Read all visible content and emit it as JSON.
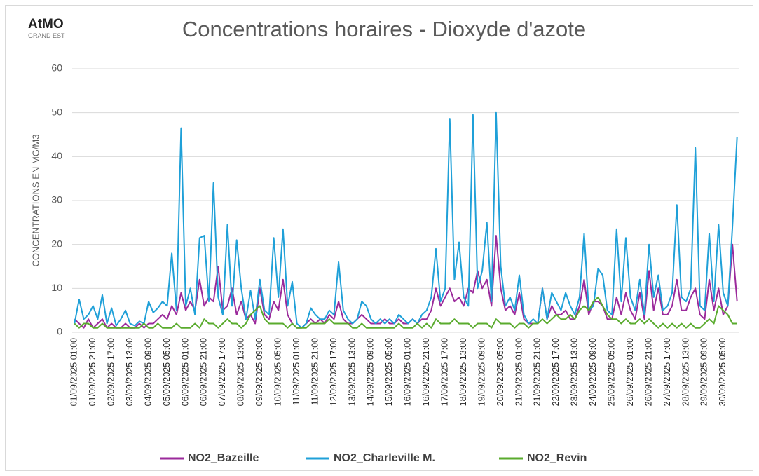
{
  "logo": {
    "name": "AtMO",
    "region": "GRAND EST"
  },
  "chart_data": {
    "type": "line",
    "title": "Concentrations horaires - Dioxyde d'azote",
    "y_label": "CONCENTRATIONS EN MG/M3",
    "ylim": [
      0,
      60
    ],
    "yticks": [
      0,
      10,
      20,
      30,
      40,
      50,
      60
    ],
    "grid": true,
    "legend": "bottom",
    "categories": [
      "01/09/2025 01:00",
      null,
      null,
      null,
      "01/09/2025 21:00",
      null,
      null,
      null,
      "02/09/2025 17:00",
      null,
      null,
      null,
      "03/09/2025 13:00",
      null,
      null,
      null,
      "04/09/2025 09:00",
      null,
      null,
      null,
      "05/09/2025 05:00",
      null,
      null,
      null,
      "06/09/2025 01:00",
      null,
      null,
      null,
      "06/09/2025 21:00",
      null,
      null,
      null,
      "07/09/2025 17:00",
      null,
      null,
      null,
      "08/09/2025 13:00",
      null,
      null,
      null,
      "09/09/2025 09:00",
      null,
      null,
      null,
      "10/09/2025 05:00",
      null,
      null,
      null,
      "11/09/2025 01:00",
      null,
      null,
      null,
      "11/09/2025 21:00",
      null,
      null,
      null,
      "12/09/2025 17:00",
      null,
      null,
      null,
      "13/09/2025 13:00",
      null,
      null,
      null,
      "14/09/2025 09:00",
      null,
      null,
      null,
      "15/09/2025 05:00",
      null,
      null,
      null,
      "16/09/2025 01:00",
      null,
      null,
      null,
      "16/09/2025 21:00",
      null,
      null,
      null,
      "17/09/2025 17:00",
      null,
      null,
      null,
      "18/09/2025 13:00",
      null,
      null,
      null,
      "19/09/2025 09:00",
      null,
      null,
      null,
      "20/09/2025 05:00",
      null,
      null,
      null,
      "21/09/2025 01:00",
      null,
      null,
      null,
      "21/09/2025 21:00",
      null,
      null,
      null,
      "22/09/2025 17:00",
      null,
      null,
      null,
      "23/09/2025 13:00",
      null,
      null,
      null,
      "24/09/2025 09:00",
      null,
      null,
      null,
      "25/09/2025 05:00",
      null,
      null,
      null,
      "26/09/2025 01:00",
      null,
      null,
      null,
      "26/09/2025 21:00",
      null,
      null,
      null,
      "27/09/2025 17:00",
      null,
      null,
      null,
      "28/09/2025 13:00",
      null,
      null,
      null,
      "29/09/2025 09:00",
      null,
      null,
      null,
      "30/09/2025 05:00",
      null,
      null,
      null
    ],
    "series": [
      {
        "name": "NO2_Bazeille",
        "color": "#9b2a9b",
        "values": [
          3,
          2,
          1,
          3,
          1,
          2,
          3,
          1,
          2,
          1,
          1,
          2,
          1,
          1,
          2,
          1,
          2,
          2,
          3,
          4,
          3,
          6,
          4,
          9,
          5,
          7,
          5,
          12,
          6,
          8,
          7,
          15,
          5,
          6,
          10,
          4,
          7,
          3,
          4,
          2,
          10,
          4,
          3,
          7,
          5,
          12,
          4,
          2,
          1,
          1,
          2,
          3,
          2,
          3,
          2,
          4,
          3,
          7,
          3,
          2,
          2,
          3,
          4,
          3,
          2,
          2,
          2,
          3,
          2,
          2,
          3,
          2,
          2,
          3,
          2,
          3,
          3,
          5,
          10,
          6,
          8,
          10,
          7,
          8,
          6,
          10,
          9,
          14,
          10,
          12,
          6,
          22,
          10,
          5,
          6,
          4,
          9,
          3,
          2,
          2,
          2,
          10,
          3,
          6,
          4,
          4,
          5,
          3,
          3,
          6,
          12,
          4,
          7,
          7,
          6,
          3,
          3,
          8,
          4,
          9,
          5,
          3,
          9,
          3,
          14,
          5,
          10,
          4,
          4,
          6,
          12,
          5,
          5,
          8,
          10,
          4,
          3,
          12,
          5,
          10,
          4,
          6,
          20,
          7
        ]
      },
      {
        "name": "NO2_Charleville M.",
        "color": "#1fa0d8",
        "values": [
          2,
          7.5,
          3,
          4,
          6,
          3,
          8.5,
          2,
          5.5,
          1.5,
          3,
          5,
          2,
          1.5,
          2.5,
          2,
          7,
          4.5,
          5.5,
          7,
          6,
          18,
          5,
          46.5,
          6,
          10,
          4,
          21.5,
          22,
          7,
          34,
          8,
          4,
          24.5,
          6,
          21,
          10,
          3,
          9.5,
          3,
          12,
          5,
          4,
          21.5,
          8,
          23.5,
          6,
          11.5,
          2,
          1,
          2,
          5.5,
          4,
          3,
          3,
          5,
          4,
          16,
          5,
          3,
          2,
          3,
          7,
          6,
          3,
          2,
          3,
          2,
          3,
          2,
          4,
          3,
          2,
          3,
          2,
          4,
          5,
          8,
          19,
          7,
          10,
          48.5,
          12,
          20.5,
          8,
          6,
          49.5,
          10,
          14,
          25,
          7,
          50,
          15,
          6,
          8,
          5,
          13,
          4,
          2,
          3,
          2,
          10,
          3,
          9,
          7,
          5,
          9,
          6,
          4,
          8,
          22.5,
          5,
          6,
          14.5,
          13,
          5,
          4,
          23.5,
          7,
          21.5,
          8,
          5,
          12,
          4,
          20,
          8,
          13,
          5,
          6,
          9,
          29,
          8,
          7,
          10,
          42,
          6,
          5,
          22.5,
          7,
          24.5,
          9,
          6,
          24,
          44.5
        ]
      },
      {
        "name": "NO2_Revin",
        "color": "#5aab2e",
        "values": [
          2,
          1,
          2,
          2,
          1,
          1,
          2,
          1,
          1,
          1,
          1,
          1,
          1,
          1,
          1,
          2,
          1,
          1,
          2,
          1,
          1,
          1,
          2,
          1,
          1,
          1,
          2,
          1,
          3,
          2,
          2,
          1,
          2,
          3,
          2,
          2,
          1,
          2,
          4,
          5,
          6,
          3,
          2,
          2,
          2,
          2,
          1,
          2,
          1,
          1,
          1,
          2,
          2,
          2,
          2,
          3,
          2,
          2,
          2,
          2,
          1,
          1,
          2,
          1,
          1,
          1,
          1,
          1,
          1,
          1,
          2,
          1,
          1,
          1,
          2,
          1,
          2,
          1,
          3,
          2,
          2,
          2,
          3,
          2,
          2,
          2,
          1,
          2,
          2,
          2,
          1,
          3,
          2,
          2,
          2,
          1,
          2,
          2,
          1,
          2,
          2,
          3,
          2,
          3,
          4,
          3,
          3,
          4,
          3,
          5,
          6,
          5,
          7,
          8,
          6,
          4,
          3,
          3,
          2,
          3,
          2,
          2,
          3,
          2,
          3,
          2,
          1,
          2,
          1,
          2,
          1,
          2,
          1,
          2,
          1,
          1,
          2,
          3,
          2,
          6,
          5,
          4,
          2,
          2
        ]
      }
    ]
  }
}
